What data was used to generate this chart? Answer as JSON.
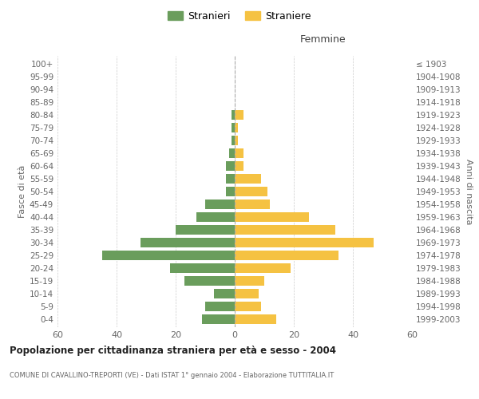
{
  "age_groups": [
    "0-4",
    "5-9",
    "10-14",
    "15-19",
    "20-24",
    "25-29",
    "30-34",
    "35-39",
    "40-44",
    "45-49",
    "50-54",
    "55-59",
    "60-64",
    "65-69",
    "70-74",
    "75-79",
    "80-84",
    "85-89",
    "90-94",
    "95-99",
    "100+"
  ],
  "birth_years": [
    "1999-2003",
    "1994-1998",
    "1989-1993",
    "1984-1988",
    "1979-1983",
    "1974-1978",
    "1969-1973",
    "1964-1968",
    "1959-1963",
    "1954-1958",
    "1949-1953",
    "1944-1948",
    "1939-1943",
    "1934-1938",
    "1929-1933",
    "1924-1928",
    "1919-1923",
    "1914-1918",
    "1909-1913",
    "1904-1908",
    "≤ 1903"
  ],
  "males": [
    11,
    10,
    7,
    17,
    22,
    45,
    32,
    20,
    13,
    10,
    3,
    3,
    3,
    2,
    1,
    1,
    1,
    0,
    0,
    0,
    0
  ],
  "females": [
    14,
    9,
    8,
    10,
    19,
    35,
    47,
    34,
    25,
    12,
    11,
    9,
    3,
    3,
    1,
    1,
    3,
    0,
    0,
    0,
    0
  ],
  "male_color": "#6a9d5c",
  "female_color": "#f5c242",
  "male_label": "Stranieri",
  "female_label": "Straniere",
  "title": "Popolazione per cittadinanza straniera per età e sesso - 2004",
  "subtitle": "COMUNE DI CAVALLINO-TREPORTI (VE) - Dati ISTAT 1° gennaio 2004 - Elaborazione TUTTITALIA.IT",
  "xlabel_right": "Femmine",
  "ylabel_left": "Fasce di età",
  "ylabel_right": "Anni di nascita",
  "xlim": 60,
  "background_color": "#ffffff",
  "grid_color": "#cccccc"
}
